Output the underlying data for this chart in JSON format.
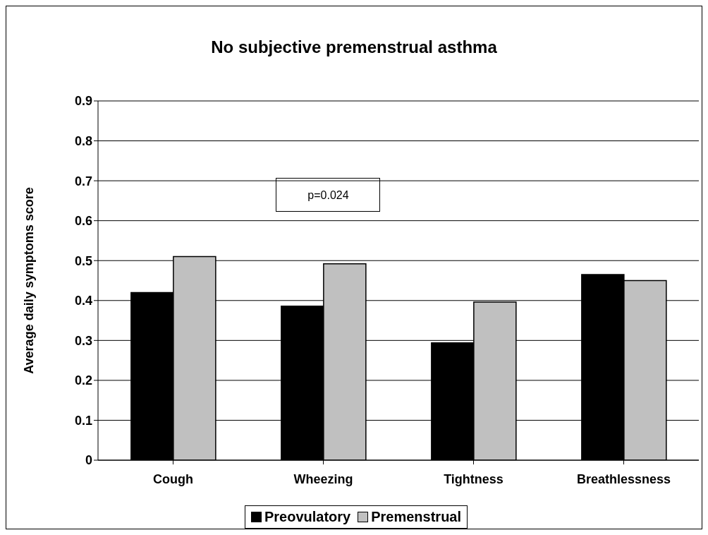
{
  "chart_data": {
    "type": "bar",
    "title": "No subjective premenstrual asthma",
    "ylabel": "Average daily symptoms score",
    "categories": [
      "Cough",
      "Wheezing",
      "Tightness",
      "Breathlessness"
    ],
    "series": [
      {
        "name": "Preovulatory",
        "color": "#000000",
        "values": [
          0.42,
          0.386,
          0.294,
          0.465
        ]
      },
      {
        "name": "Premenstrual",
        "color": "#c0c0c0",
        "values": [
          0.51,
          0.492,
          0.396,
          0.45
        ]
      }
    ],
    "ylim": [
      0,
      0.9
    ],
    "yticks": [
      0,
      0.1,
      0.2,
      0.3,
      0.4,
      0.5,
      0.6,
      0.7,
      0.8,
      0.9
    ],
    "grid": "y",
    "legend": "bottom",
    "annotations": [
      "p=0.024"
    ]
  }
}
